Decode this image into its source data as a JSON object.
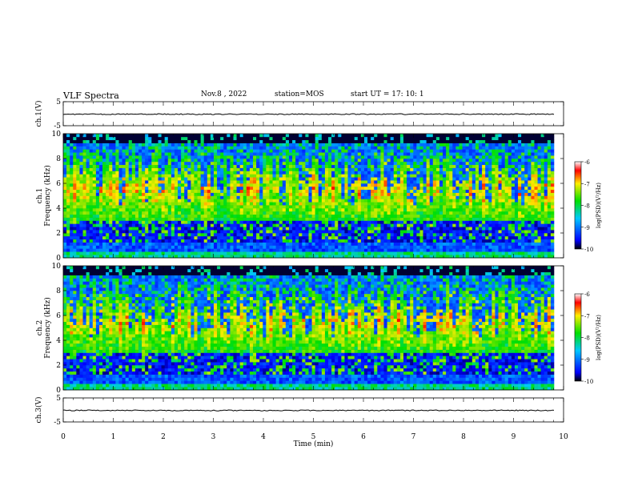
{
  "header": {
    "title": "VLF Spectra",
    "date": "Nov.8 , 2022",
    "station": "station=MOS",
    "start": "start UT = 17: 10: 1"
  },
  "chart_data": [
    {
      "type": "line",
      "name": "ch1-voltage",
      "ylabel": "ch.1(V)",
      "ylim": [
        -5,
        5
      ],
      "yticks": [
        "5",
        "-5"
      ],
      "xlim": [
        0,
        10
      ],
      "series": [
        {
          "values": [
            -0.2,
            -0.2,
            -0.2,
            -0.2,
            -0.2,
            -0.2,
            -0.2,
            -0.2,
            -0.2,
            -0.2,
            -0.2
          ]
        }
      ]
    },
    {
      "type": "heatmap",
      "name": "ch1-spectrogram",
      "ylabel_line1": "ch.1",
      "ylabel_line2": "Frequency (kHz)",
      "ylim": [
        0,
        10
      ],
      "yticks": [
        "0",
        "2",
        "4",
        "6",
        "8",
        "10"
      ],
      "xlim": [
        0,
        10
      ],
      "colorbar": {
        "label": "log(PSD)(V²/Hz)",
        "range": [
          -10,
          -6
        ],
        "ticks": [
          "-6",
          "-7",
          "-8",
          "-9",
          "-10"
        ]
      }
    },
    {
      "type": "heatmap",
      "name": "ch2-spectrogram",
      "ylabel_line1": "ch.2",
      "ylabel_line2": "Frequency (kHz)",
      "ylim": [
        0,
        10
      ],
      "yticks": [
        "0",
        "2",
        "4",
        "6",
        "8",
        "10"
      ],
      "xlim": [
        0,
        10
      ],
      "colorbar": {
        "label": "log(PSD)(V²/Hz)",
        "range": [
          -10,
          -6
        ],
        "ticks": [
          "-6",
          "-7",
          "-8",
          "-9",
          "-10"
        ]
      }
    },
    {
      "type": "line",
      "name": "ch3-voltage",
      "ylabel": "ch.3(V)",
      "ylim": [
        -5,
        5
      ],
      "yticks": [
        "5",
        "-5"
      ],
      "xlim": [
        0,
        10
      ],
      "xlabel": "Time (min)",
      "xticks": [
        "0",
        "1",
        "2",
        "3",
        "4",
        "5",
        "6",
        "7",
        "8",
        "9",
        "10"
      ],
      "series": [
        {
          "values": [
            -0.2,
            -0.2,
            -0.2,
            -0.2,
            -0.2,
            -0.2,
            -0.2,
            -0.2,
            -0.2,
            -0.2,
            -0.2
          ]
        }
      ]
    }
  ]
}
